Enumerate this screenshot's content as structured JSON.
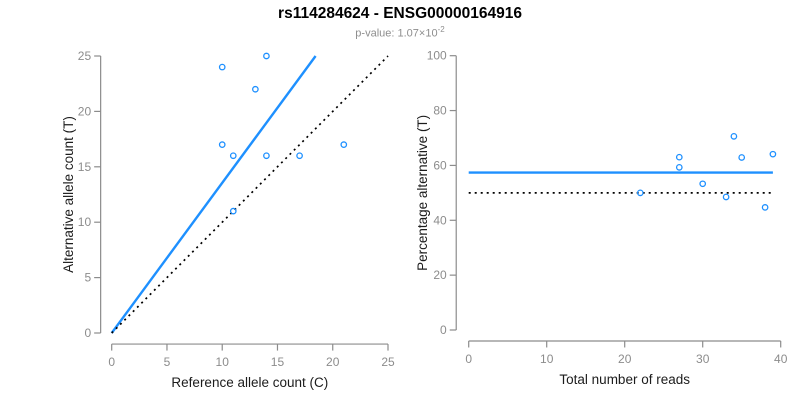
{
  "chart_data": {
    "title": "rs114284624 - ENSG00000164916",
    "subtitle": "p-value: 1.07×10⁻²",
    "subtitle_parts": {
      "prefix": "p-value: ",
      "mantissa": "1.07×10",
      "exponent": "-2"
    },
    "colors": {
      "accent_blue": "#1E90FF",
      "axis_gray": "#8c8c8c",
      "dotted_black": "#000000"
    },
    "plots": [
      {
        "type": "scatter",
        "xlabel": "Reference allele count (C)",
        "ylabel": "Alternative allele count (T)",
        "xlim": [
          0,
          25
        ],
        "ylim": [
          0,
          25
        ],
        "xticks": [
          0,
          5,
          10,
          15,
          20,
          25
        ],
        "yticks": [
          0,
          5,
          10,
          15,
          20,
          25
        ],
        "grid": false,
        "legend": false,
        "point_color": "#1E90FF",
        "points": [
          [
            14,
            25
          ],
          [
            10,
            24
          ],
          [
            13,
            22
          ],
          [
            21,
            17
          ],
          [
            10,
            17
          ],
          [
            11,
            16
          ],
          [
            14,
            16
          ],
          [
            17,
            16
          ],
          [
            11,
            11
          ]
        ],
        "lines": [
          {
            "name": "fit-line",
            "style": "solid",
            "color": "#1E90FF",
            "x1": 0,
            "y1": 0,
            "x2": 18.45,
            "y2": 25
          },
          {
            "name": "identity-line",
            "style": "dotted",
            "color": "#000000",
            "x1": 0,
            "y1": 0,
            "x2": 25,
            "y2": 25
          }
        ]
      },
      {
        "type": "scatter",
        "xlabel": "Total number of reads",
        "ylabel": "Percentage alternative (T)",
        "xlim": [
          0,
          40
        ],
        "ylim": [
          0,
          100
        ],
        "xticks": [
          0,
          10,
          20,
          30,
          40
        ],
        "yticks": [
          0,
          20,
          40,
          60,
          80,
          100
        ],
        "grid": false,
        "legend": false,
        "point_color": "#1E90FF",
        "points": [
          [
            39,
            64.1
          ],
          [
            34,
            70.6
          ],
          [
            35,
            62.9
          ],
          [
            38,
            44.7
          ],
          [
            27,
            63.0
          ],
          [
            27,
            59.3
          ],
          [
            30,
            53.3
          ],
          [
            33,
            48.5
          ],
          [
            22,
            50.0
          ]
        ],
        "lines": [
          {
            "name": "mean-percentage-line",
            "style": "solid",
            "color": "#1E90FF",
            "x1": 0,
            "y1": 57.4,
            "x2": 39,
            "y2": 57.4
          },
          {
            "name": "expected-percentage-line",
            "style": "dotted",
            "color": "#000000",
            "x1": 0,
            "y1": 50,
            "x2": 39,
            "y2": 50
          }
        ]
      }
    ]
  }
}
